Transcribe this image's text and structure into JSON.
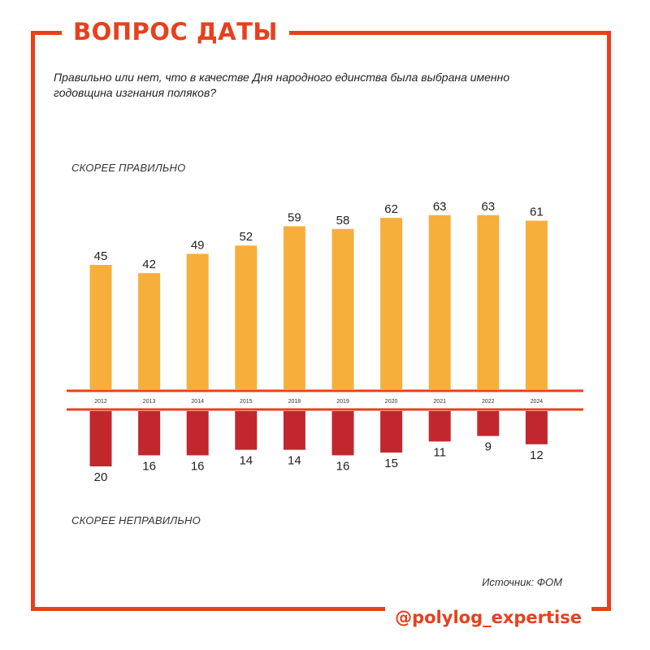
{
  "header": {
    "title": "ВОПРОС ДАТЫ"
  },
  "question": "Правильно или нет, что в качестве Дня народного единства была выбрана именно годовщина изгнания поляков?",
  "footer": {
    "source": "Источник: ФОМ",
    "handle": "@polylog_expertise"
  },
  "colors": {
    "accent": "#e8401c",
    "positive": "#f7af3b",
    "negative": "#c1272d"
  },
  "chart_data": {
    "type": "bar",
    "categories": [
      "2012",
      "2013",
      "2014",
      "2015",
      "2018",
      "2019",
      "2020",
      "2021",
      "2022",
      "2024"
    ],
    "series": [
      {
        "name": "СКОРЕЕ ПРАВИЛЬНО",
        "values": [
          45,
          42,
          49,
          52,
          59,
          58,
          62,
          63,
          63,
          61
        ],
        "color": "#f7af3b",
        "direction": "up"
      },
      {
        "name": "СКОРЕЕ НЕПРАВИЛЬНО",
        "values": [
          20,
          16,
          16,
          14,
          14,
          16,
          15,
          11,
          9,
          12
        ],
        "color": "#c1272d",
        "direction": "down"
      }
    ],
    "title": "",
    "xlabel": "",
    "ylabel": "",
    "ylim": [
      0,
      70
    ],
    "grid": false,
    "legend": "none"
  }
}
